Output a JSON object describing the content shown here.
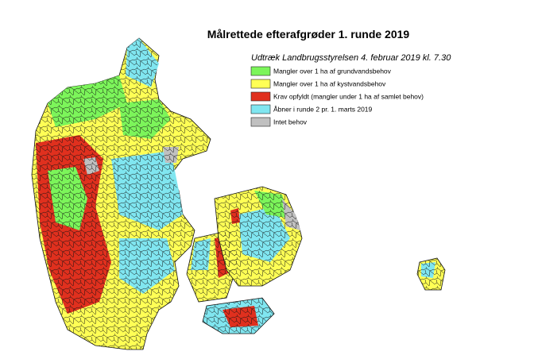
{
  "header": {
    "title": "Målrettede efterafgrøder 1. runde 2019",
    "subtitle": "Udtræk Landbrugsstyrelsen 4. februar 2019 kl. 7.30"
  },
  "legend": {
    "items": [
      {
        "label": "Mangler over 1 ha af grundvandsbehov",
        "color": "#7cf55a"
      },
      {
        "label": "Mangler over 1 ha af kystvandsbehov",
        "color": "#ffff55"
      },
      {
        "label": "Krav opfyldt (mangler under 1 ha af samlet behov)",
        "color": "#e0301e"
      },
      {
        "label": "Åbner i runde 2 pr. 1. marts 2019",
        "color": "#80e6f0"
      },
      {
        "label": "Intet behov",
        "color": "#c0c0c0"
      }
    ]
  }
}
